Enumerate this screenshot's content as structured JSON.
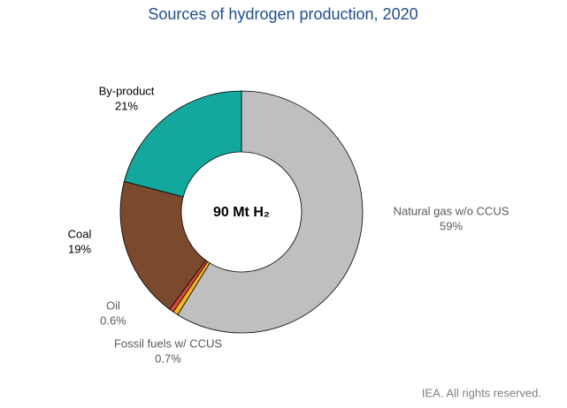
{
  "chart_data": {
    "type": "donut",
    "title": "Sources of hydrogen production, 2020",
    "center_label": "90 Mt H₂",
    "categories": [
      "Natural gas w/o CCUS",
      "Fossil fuels w/ CCUS",
      "Oil",
      "Coal",
      "By-product"
    ],
    "values": [
      59,
      0.7,
      0.6,
      19,
      21
    ],
    "value_labels": [
      "59%",
      "0.7%",
      "0.6%",
      "19%",
      "21%"
    ],
    "colors": [
      "#bfbfbf",
      "#f2b51d",
      "#d9473a",
      "#7b4a2e",
      "#13a89e"
    ],
    "footnote": "IEA. All rights reserved."
  }
}
